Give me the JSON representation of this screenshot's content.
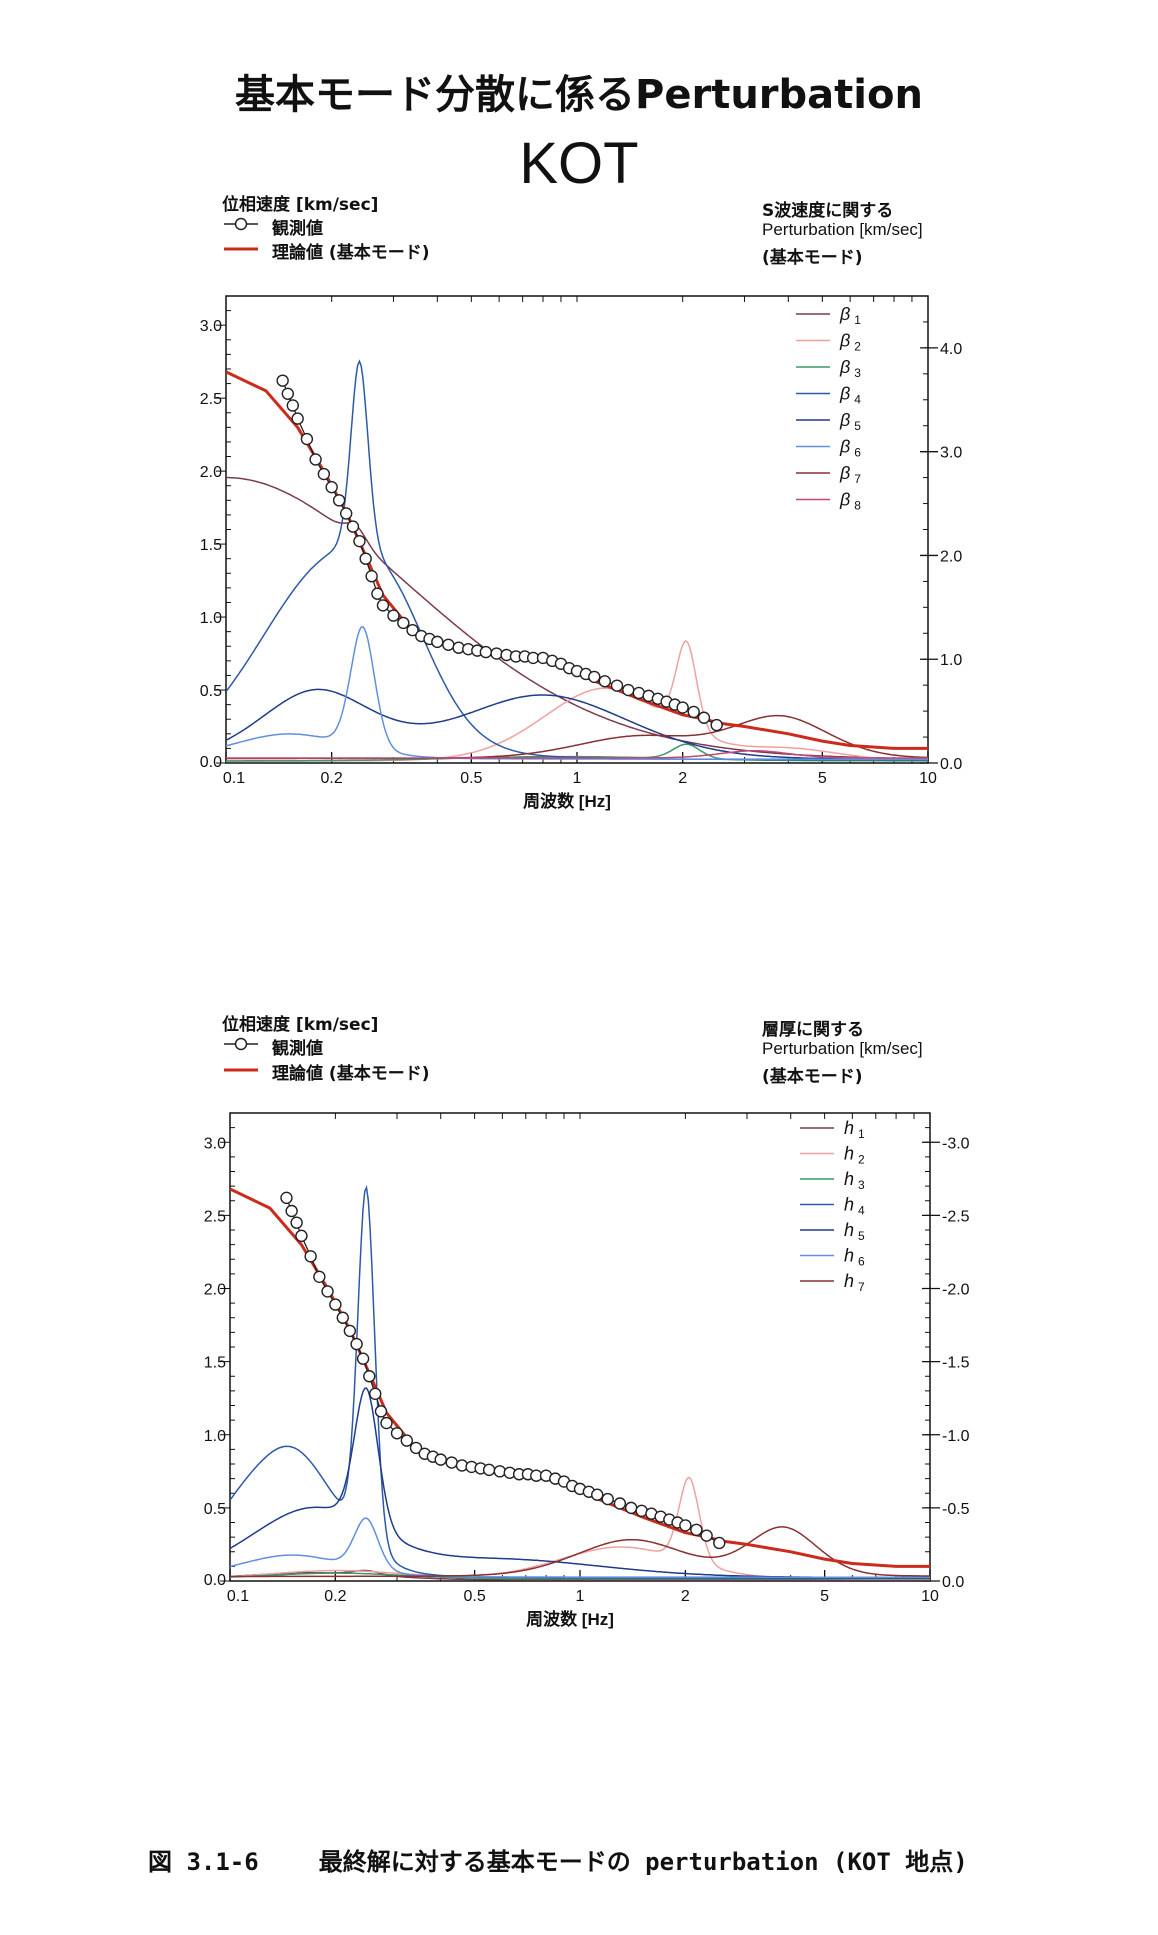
{
  "main_title": "基本モード分散に係るPerturbation",
  "site_title": "KOT",
  "caption": {
    "number": "図 3.1-6",
    "text": "最終解に対する基本モードの perturbation (KOT 地点)"
  },
  "chart_data": [
    {
      "type": "line",
      "name": "s-wave-perturbation",
      "left_header": {
        "ylabel": "位相速度 [km/sec]",
        "observed_label": "観測値",
        "theory_label": "理論値 (基本モード)"
      },
      "right_header": {
        "line1": "S波速度に関する",
        "line2": "Perturbation [km/sec]",
        "line3": "(基本モード)"
      },
      "xlabel": "周波数 [Hz]",
      "x_scale": "log",
      "xlim": [
        0.1,
        10
      ],
      "x_ticks": [
        "0.1",
        "0.2",
        "0.5",
        "1",
        "2",
        "5",
        "10"
      ],
      "ylim_left": [
        0,
        3.2
      ],
      "y_ticks_left": [
        "0.0",
        "0.5",
        "1.0",
        "1.5",
        "2.0",
        "2.5",
        "3.0"
      ],
      "ylim_right": [
        0,
        4.5
      ],
      "y_ticks_right": [
        "0.0",
        "1.0",
        "2.0",
        "3.0",
        "4.0"
      ],
      "series": [
        {
          "name": "β₁",
          "label_main": "β",
          "label_sub": "1",
          "color": "#7a3a52",
          "peaks": [
            [
              0.1,
              1.95,
              0.55
            ],
            [
              0.235,
              0.1,
              0.03
            ]
          ]
        },
        {
          "name": "β₂",
          "label_main": "β",
          "label_sub": "2",
          "color": "#f0a0a0",
          "peaks": [
            [
              1.2,
              0.5,
              0.18
            ],
            [
              2.05,
              0.6,
              0.03
            ],
            [
              4.0,
              0.08,
              0.15
            ]
          ]
        },
        {
          "name": "β₃",
          "label_main": "β",
          "label_sub": "3",
          "color": "#3a9a6a",
          "peaks": [
            [
              2.05,
              0.1,
              0.04
            ],
            [
              0.9,
              0.03,
              0.3
            ]
          ]
        },
        {
          "name": "β₄",
          "label_main": "β",
          "label_sub": "4",
          "color": "#2c5aa8",
          "peaks": [
            [
              0.19,
              1.25,
              0.2
            ],
            [
              0.24,
              1.3,
              0.025
            ],
            [
              0.3,
              0.5,
              0.12
            ]
          ]
        },
        {
          "name": "β₅",
          "label_main": "β",
          "label_sub": "5",
          "color": "#1e3c8c",
          "peaks": [
            [
              0.18,
              0.46,
              0.16
            ],
            [
              0.8,
              0.44,
              0.25
            ]
          ]
        },
        {
          "name": "β₆",
          "label_main": "β",
          "label_sub": "6",
          "color": "#6090dd",
          "peaks": [
            [
              0.15,
              0.17,
              0.16
            ],
            [
              0.245,
              0.84,
              0.035
            ]
          ]
        },
        {
          "name": "β₇",
          "label_main": "β",
          "label_sub": "7",
          "color": "#8a3030",
          "peaks": [
            [
              1.5,
              0.15,
              0.18
            ],
            [
              3.8,
              0.28,
              0.14
            ]
          ]
        },
        {
          "name": "β₈",
          "label_main": "β",
          "label_sub": "8",
          "color": "#c04878",
          "peaks": [
            [
              3.2,
              0.05,
              0.1
            ]
          ]
        }
      ],
      "theory": {
        "name": "理論値 (基本モード)",
        "color": "#cc2a1a",
        "x": [
          0.1,
          0.13,
          0.16,
          0.19,
          0.22,
          0.25,
          0.28,
          0.33,
          0.4,
          0.5,
          0.6,
          0.7,
          0.8,
          0.9,
          1.0,
          1.1,
          1.3,
          1.5,
          1.8,
          2.0,
          2.3,
          2.6,
          3.0,
          4.0,
          5.0,
          6.0,
          8.0,
          10.0
        ],
        "y": [
          2.68,
          2.55,
          2.3,
          2.0,
          1.72,
          1.42,
          1.15,
          0.94,
          0.83,
          0.77,
          0.73,
          0.71,
          0.7,
          0.66,
          0.62,
          0.57,
          0.5,
          0.44,
          0.37,
          0.33,
          0.3,
          0.27,
          0.25,
          0.2,
          0.15,
          0.12,
          0.1,
          0.1
        ]
      },
      "observed": {
        "name": "観測値",
        "x": [
          0.145,
          0.15,
          0.155,
          0.16,
          0.17,
          0.18,
          0.19,
          0.2,
          0.21,
          0.22,
          0.23,
          0.24,
          0.25,
          0.26,
          0.27,
          0.28,
          0.3,
          0.32,
          0.34,
          0.36,
          0.38,
          0.4,
          0.43,
          0.46,
          0.49,
          0.52,
          0.55,
          0.59,
          0.63,
          0.67,
          0.71,
          0.75,
          0.8,
          0.85,
          0.9,
          0.95,
          1.0,
          1.06,
          1.12,
          1.2,
          1.3,
          1.4,
          1.5,
          1.6,
          1.7,
          1.8,
          1.9,
          2.0,
          2.15,
          2.3,
          2.5
        ],
        "y": [
          2.62,
          2.53,
          2.45,
          2.36,
          2.22,
          2.08,
          1.98,
          1.89,
          1.8,
          1.71,
          1.62,
          1.52,
          1.4,
          1.28,
          1.16,
          1.08,
          1.01,
          0.96,
          0.91,
          0.87,
          0.85,
          0.83,
          0.81,
          0.79,
          0.78,
          0.77,
          0.76,
          0.75,
          0.74,
          0.73,
          0.73,
          0.72,
          0.72,
          0.7,
          0.68,
          0.65,
          0.63,
          0.61,
          0.59,
          0.56,
          0.53,
          0.5,
          0.48,
          0.46,
          0.44,
          0.42,
          0.4,
          0.38,
          0.35,
          0.31,
          0.26
        ]
      }
    },
    {
      "type": "line",
      "name": "layer-thickness-perturbation",
      "left_header": {
        "ylabel": "位相速度 [km/sec]",
        "observed_label": "観測値",
        "theory_label": "理論値 (基本モード)"
      },
      "right_header": {
        "line1": "層厚に関する",
        "line2": "Perturbation [km/sec]",
        "line3": "(基本モード)"
      },
      "xlabel": "周波数 [Hz]",
      "x_scale": "log",
      "xlim": [
        0.1,
        10
      ],
      "x_ticks": [
        "0.1",
        "0.2",
        "0.5",
        "1",
        "2",
        "5",
        "10"
      ],
      "ylim_left": [
        0,
        3.2
      ],
      "y_ticks_left": [
        "0.0",
        "0.5",
        "1.0",
        "1.5",
        "2.0",
        "2.5",
        "3.0"
      ],
      "ylim_right": [
        0,
        -3.2
      ],
      "y_ticks_right": [
        "0.0",
        "-0.5",
        "-1.0",
        "-1.5",
        "-2.0",
        "-2.5",
        "-3.0"
      ],
      "series": [
        {
          "name": "h₁",
          "label_main": "h",
          "label_sub": "1",
          "color": "#7a3a52",
          "peaks": [
            [
              0.17,
              0.05,
              0.2
            ],
            [
              0.245,
              0.03,
              0.04
            ]
          ]
        },
        {
          "name": "h₂",
          "label_main": "h",
          "label_sub": "2",
          "color": "#f0a0a0",
          "peaks": [
            [
              1.3,
              0.22,
              0.18
            ],
            [
              2.05,
              0.58,
              0.03
            ],
            [
              0.2,
              0.06,
              0.2
            ]
          ]
        },
        {
          "name": "h₃",
          "label_main": "h",
          "label_sub": "3",
          "color": "#3a9a6a",
          "peaks": [
            [
              0.2,
              0.04,
              0.2
            ]
          ]
        },
        {
          "name": "h₄",
          "label_main": "h",
          "label_sub": "4",
          "color": "#2c5aa8",
          "peaks": [
            [
              0.15,
              0.85,
              0.13
            ],
            [
              0.245,
              2.45,
              0.025
            ],
            [
              0.1,
              0.2,
              0.1
            ]
          ]
        },
        {
          "name": "h₅",
          "label_main": "h",
          "label_sub": "5",
          "color": "#1e3c8c",
          "peaks": [
            [
              0.17,
              0.45,
              0.18
            ],
            [
              0.245,
              0.95,
              0.035
            ],
            [
              0.6,
              0.12,
              0.3
            ]
          ]
        },
        {
          "name": "h₆",
          "label_main": "h",
          "label_sub": "6",
          "color": "#6090dd",
          "peaks": [
            [
              0.15,
              0.15,
              0.15
            ],
            [
              0.245,
              0.35,
              0.035
            ]
          ]
        },
        {
          "name": "h₇",
          "label_main": "h",
          "label_sub": "7",
          "color": "#8a3030",
          "peaks": [
            [
              1.4,
              0.25,
              0.16
            ],
            [
              3.8,
              0.33,
              0.1
            ]
          ]
        }
      ],
      "theory": {
        "name": "理論値 (基本モード)",
        "color": "#cc2a1a",
        "x": [
          0.1,
          0.13,
          0.16,
          0.19,
          0.22,
          0.25,
          0.28,
          0.33,
          0.4,
          0.5,
          0.6,
          0.7,
          0.8,
          0.9,
          1.0,
          1.1,
          1.3,
          1.5,
          1.8,
          2.0,
          2.3,
          2.6,
          3.0,
          4.0,
          5.0,
          6.0,
          8.0,
          10.0
        ],
        "y": [
          2.68,
          2.55,
          2.3,
          2.0,
          1.72,
          1.42,
          1.15,
          0.94,
          0.83,
          0.77,
          0.73,
          0.71,
          0.7,
          0.66,
          0.62,
          0.57,
          0.5,
          0.44,
          0.37,
          0.33,
          0.3,
          0.27,
          0.25,
          0.2,
          0.15,
          0.12,
          0.1,
          0.1
        ]
      },
      "observed": {
        "name": "観測値",
        "x": [
          0.145,
          0.15,
          0.155,
          0.16,
          0.17,
          0.18,
          0.19,
          0.2,
          0.21,
          0.22,
          0.23,
          0.24,
          0.25,
          0.26,
          0.27,
          0.28,
          0.3,
          0.32,
          0.34,
          0.36,
          0.38,
          0.4,
          0.43,
          0.46,
          0.49,
          0.52,
          0.55,
          0.59,
          0.63,
          0.67,
          0.71,
          0.75,
          0.8,
          0.85,
          0.9,
          0.95,
          1.0,
          1.06,
          1.12,
          1.2,
          1.3,
          1.4,
          1.5,
          1.6,
          1.7,
          1.8,
          1.9,
          2.0,
          2.15,
          2.3,
          2.5
        ],
        "y": [
          2.62,
          2.53,
          2.45,
          2.36,
          2.22,
          2.08,
          1.98,
          1.89,
          1.8,
          1.71,
          1.62,
          1.52,
          1.4,
          1.28,
          1.16,
          1.08,
          1.01,
          0.96,
          0.91,
          0.87,
          0.85,
          0.83,
          0.81,
          0.79,
          0.78,
          0.77,
          0.76,
          0.75,
          0.74,
          0.73,
          0.73,
          0.72,
          0.72,
          0.7,
          0.68,
          0.65,
          0.63,
          0.61,
          0.59,
          0.56,
          0.53,
          0.5,
          0.48,
          0.46,
          0.44,
          0.42,
          0.4,
          0.38,
          0.35,
          0.31,
          0.26
        ]
      }
    }
  ]
}
